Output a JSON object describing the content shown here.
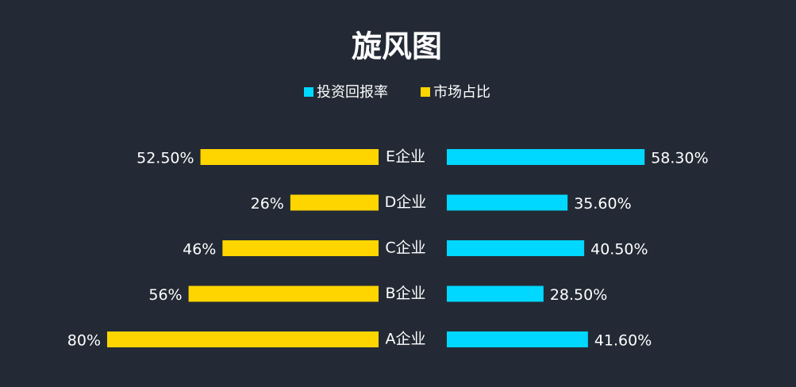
{
  "chart_data": {
    "type": "bar",
    "title": "旋风图",
    "categories": [
      "E企业",
      "D企业",
      "C企业",
      "B企业",
      "A企业"
    ],
    "series": [
      {
        "name": "投资回报率",
        "color": "#00d8ff",
        "values": [
          58.3,
          35.6,
          40.5,
          28.5,
          41.6
        ],
        "value_labels": [
          "58.30%",
          "35.60%",
          "40.50%",
          "28.50%",
          "41.60%"
        ]
      },
      {
        "name": "市场占比",
        "color": "#ffd500",
        "values": [
          52.5,
          26,
          46,
          56,
          80
        ],
        "value_labels": [
          "52.50%",
          "26%",
          "46%",
          "56%",
          "80%"
        ]
      }
    ]
  }
}
